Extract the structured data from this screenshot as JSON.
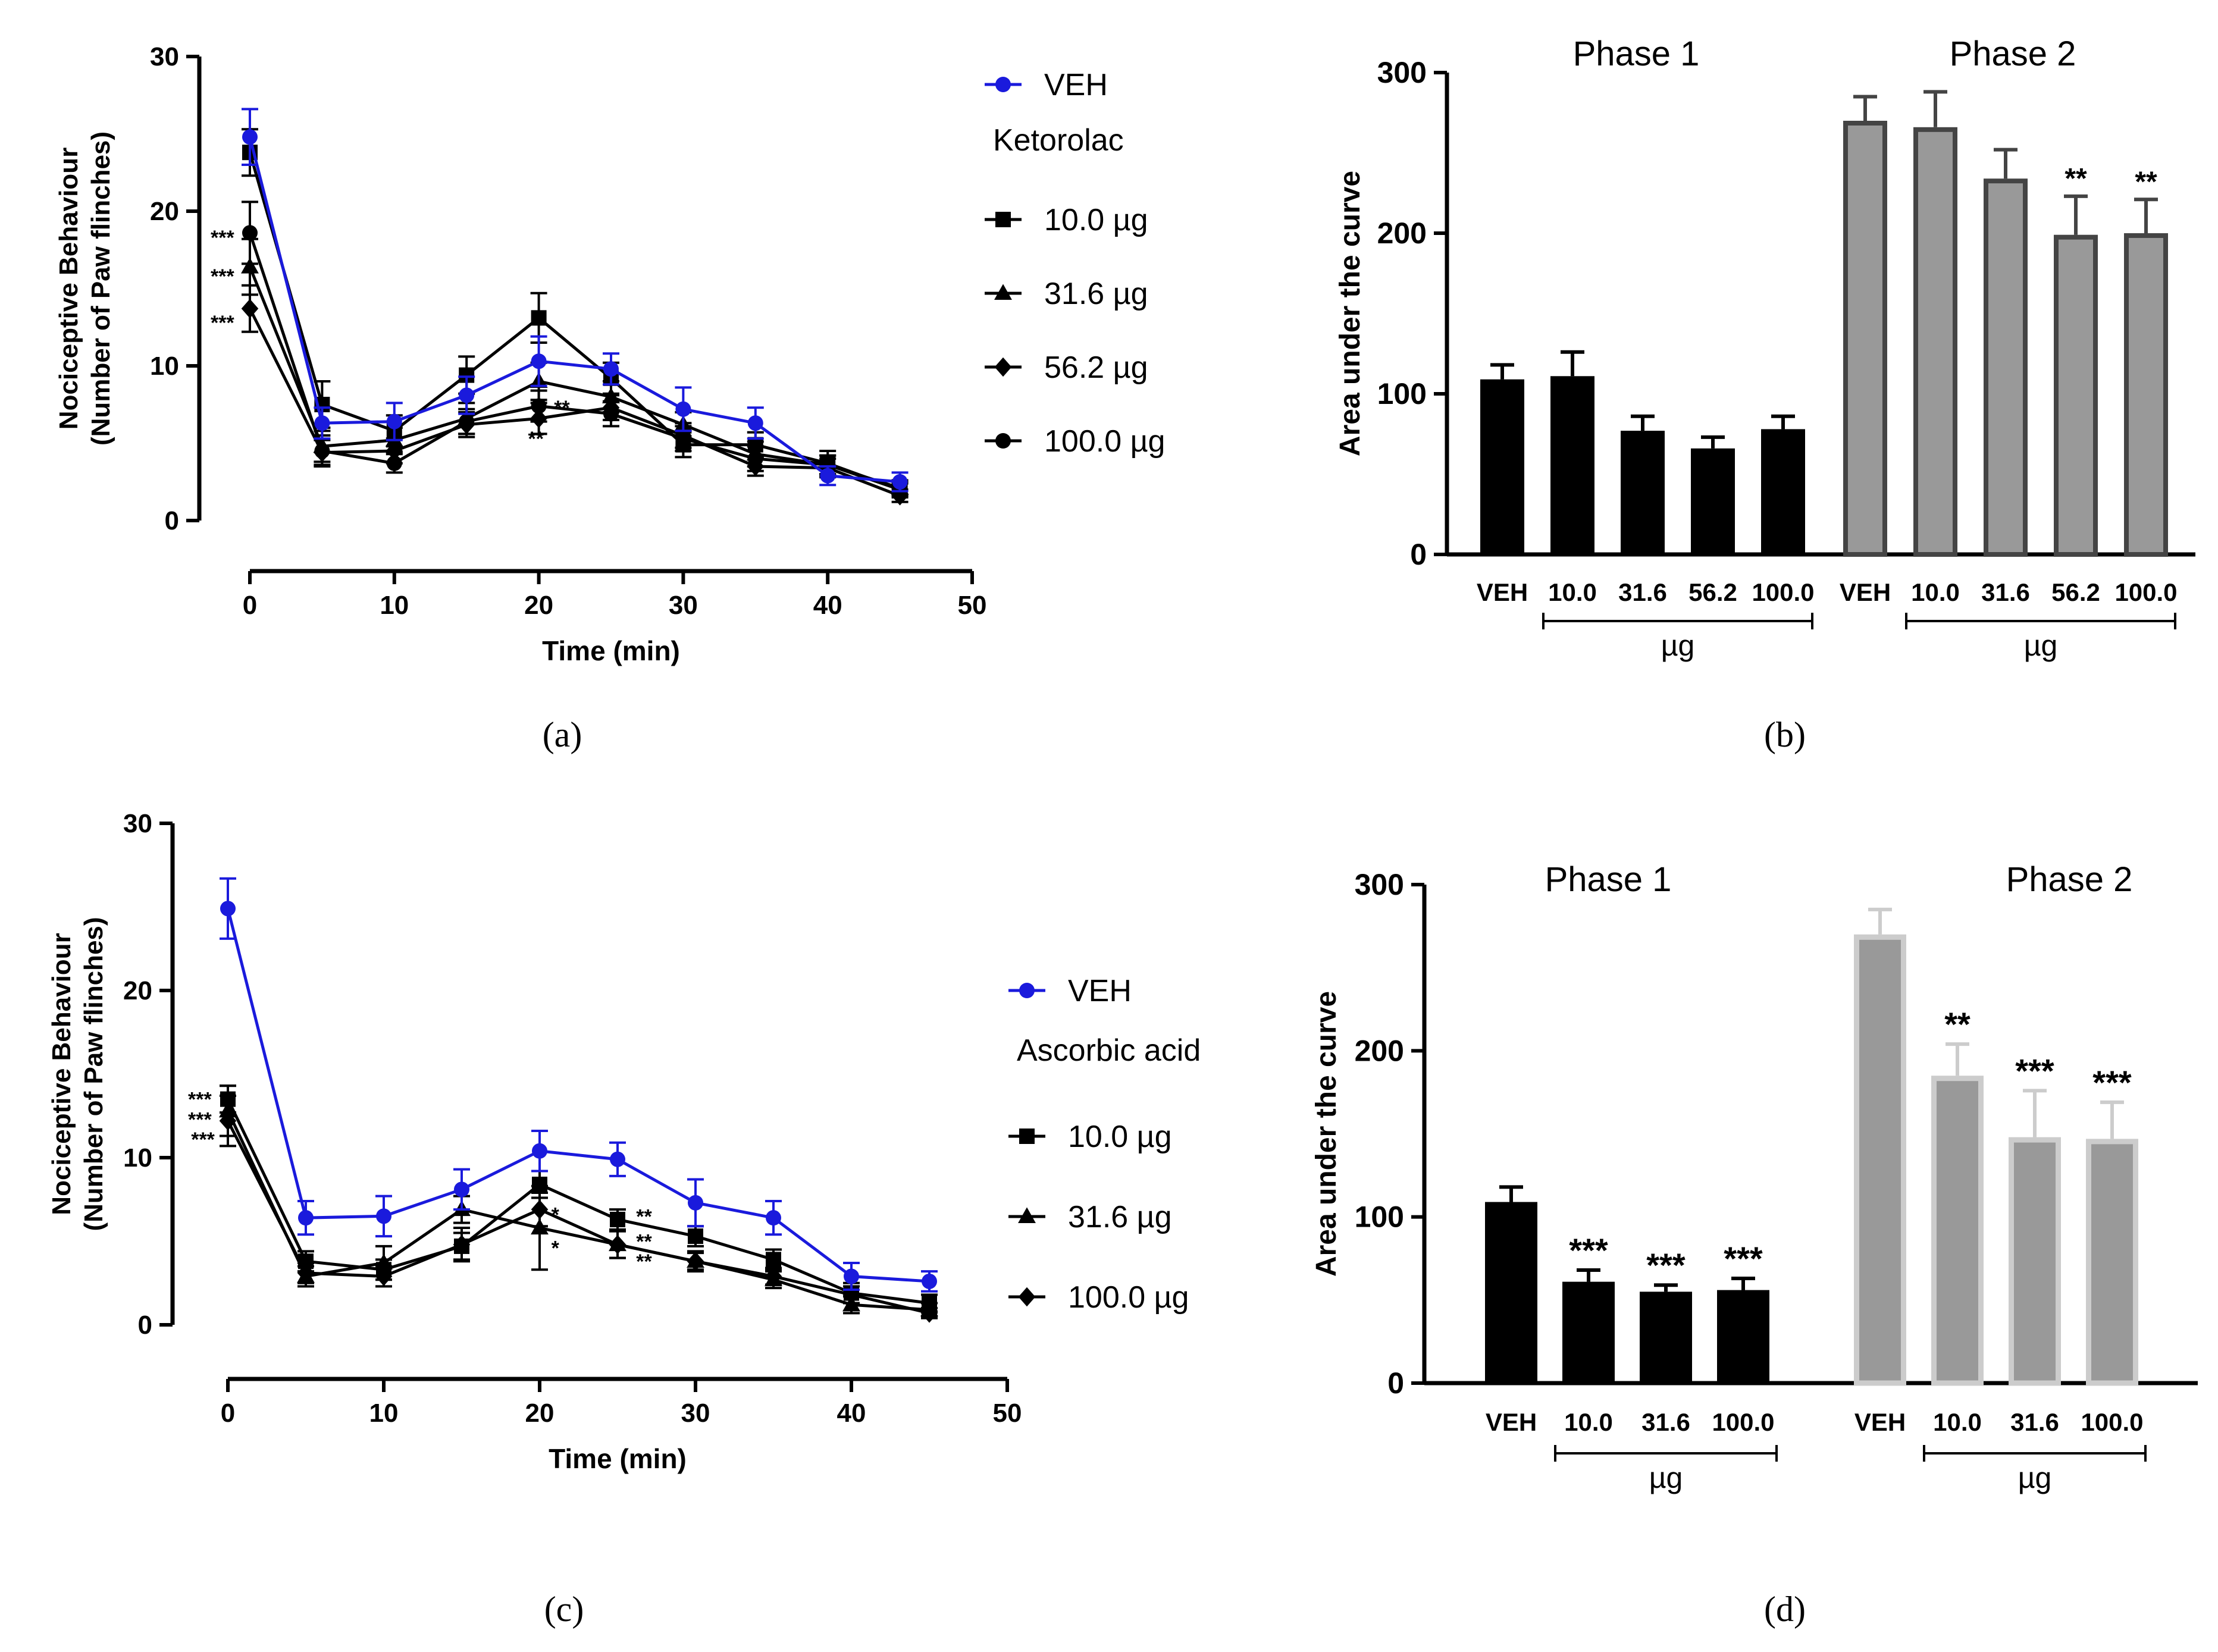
{
  "colors": {
    "veh": "#1a1adc",
    "treat": "#000000",
    "gray": "#999999",
    "grayDark": "#444444",
    "grayLight": "#cccccc"
  },
  "chart_data": [
    {
      "id": "a",
      "type": "line",
      "caption": "(a)",
      "xlabel": "Time (min)",
      "ylabel_line1": "Nociceptive Behaviour",
      "ylabel_line2": "(Number of Paw flinches)",
      "xlim": [
        0,
        50
      ],
      "ylim": [
        0,
        30
      ],
      "xticks": [
        0,
        10,
        20,
        30,
        40,
        50
      ],
      "yticks": [
        0,
        10,
        20,
        30
      ],
      "legend_group_title": "Ketorolac",
      "x": [
        0,
        5,
        10,
        15,
        20,
        25,
        30,
        35,
        40,
        45
      ],
      "series": [
        {
          "name": "VEH",
          "marker": "circle",
          "color": "veh",
          "values": [
            24.8,
            6.3,
            6.4,
            8.1,
            10.3,
            9.8,
            7.2,
            6.3,
            2.9,
            2.5
          ],
          "errors": [
            1.8,
            1.0,
            1.2,
            1.2,
            1.6,
            1.0,
            1.4,
            1.0,
            0.6,
            0.6
          ]
        },
        {
          "name": "10.0 µg",
          "marker": "square",
          "color": "treat",
          "values": [
            23.8,
            7.5,
            5.8,
            9.4,
            13.1,
            9.2,
            4.9,
            4.9,
            3.7,
            2.0
          ],
          "errors": [
            1.5,
            1.5,
            1.0,
            1.2,
            1.6,
            1.0,
            0.8,
            0.8,
            0.8,
            0.5
          ]
        },
        {
          "name": "31.6 µg",
          "marker": "triangle",
          "color": "treat",
          "values": [
            16.4,
            4.8,
            5.2,
            6.6,
            9.0,
            8.0,
            6.2,
            4.3,
            3.6,
            2.1
          ],
          "errors": [
            1.8,
            1.0,
            0.8,
            1.0,
            1.2,
            1.0,
            0.8,
            0.8,
            0.6,
            0.5
          ]
        },
        {
          "name": "56.2 µg",
          "marker": "diamond",
          "color": "treat",
          "values": [
            13.7,
            4.4,
            4.5,
            6.2,
            6.6,
            7.3,
            5.5,
            3.5,
            3.4,
            1.6
          ],
          "errors": [
            1.5,
            0.8,
            0.8,
            0.8,
            1.0,
            0.8,
            0.8,
            0.6,
            0.6,
            0.4
          ]
        },
        {
          "name": "100.0 µg",
          "marker": "circle",
          "color": "treat",
          "values": [
            18.6,
            4.5,
            3.7,
            6.4,
            7.4,
            6.9,
            5.3,
            4.0,
            3.6,
            2.0
          ],
          "errors": [
            2.0,
            1.0,
            0.6,
            0.8,
            1.0,
            0.8,
            0.8,
            0.8,
            0.6,
            0.4
          ]
        }
      ],
      "annotations": [
        {
          "text": "***",
          "x": -1.9,
          "y": 18.3
        },
        {
          "text": "***",
          "x": -1.9,
          "y": 15.8
        },
        {
          "text": "***",
          "x": -1.9,
          "y": 12.8
        },
        {
          "text": "**",
          "x": 21.6,
          "y": 7.3
        },
        {
          "text": "**",
          "x": 19.8,
          "y": 5.3
        }
      ]
    },
    {
      "id": "b",
      "type": "bar",
      "caption": "(b)",
      "ylabel": "Area under the curve",
      "ylim": [
        0,
        300
      ],
      "yticks": [
        0,
        100,
        200,
        300
      ],
      "unit_label": "µg",
      "groups": [
        {
          "title": "Phase 1",
          "style": "black",
          "categories": [
            "VEH",
            "10.0",
            "31.6",
            "56.2",
            "100.0"
          ],
          "values": [
            109,
            111,
            77,
            66,
            78
          ],
          "errors": [
            9,
            15,
            9,
            7,
            8
          ],
          "stars": [
            "",
            "",
            "",
            "",
            ""
          ]
        },
        {
          "title": "Phase 2",
          "style": "gray",
          "categories": [
            "VEH",
            "10.0",
            "31.6",
            "56.2",
            "100.0"
          ],
          "values": [
            270,
            266,
            234,
            199,
            200
          ],
          "errors": [
            15,
            22,
            18,
            24,
            21
          ],
          "stars": [
            "",
            "",
            "",
            "**",
            "**"
          ]
        }
      ]
    },
    {
      "id": "c",
      "type": "line",
      "caption": "(c)",
      "xlabel": "Time (min)",
      "ylabel_line1": "Nociceptive Behaviour",
      "ylabel_line2": "(Number of Paw flinches)",
      "xlim": [
        0,
        50
      ],
      "ylim": [
        0,
        30
      ],
      "xticks": [
        0,
        10,
        20,
        30,
        40,
        50
      ],
      "yticks": [
        0,
        10,
        20,
        30
      ],
      "legend_group_title": "Ascorbic acid",
      "x": [
        0,
        5,
        10,
        15,
        20,
        25,
        30,
        35,
        40,
        45
      ],
      "series": [
        {
          "name": "VEH",
          "marker": "circle",
          "color": "veh",
          "values": [
            24.9,
            6.4,
            6.5,
            8.1,
            10.4,
            9.9,
            7.3,
            6.4,
            2.9,
            2.6
          ],
          "errors": [
            1.8,
            1.0,
            1.2,
            1.2,
            1.2,
            1.0,
            1.4,
            1.0,
            0.8,
            0.6
          ]
        },
        {
          "name": "10.0 µg",
          "marker": "square",
          "color": "treat",
          "values": [
            13.5,
            3.8,
            3.3,
            4.7,
            8.4,
            6.3,
            5.3,
            3.9,
            1.9,
            1.3
          ],
          "errors": [
            0.8,
            0.6,
            0.6,
            0.8,
            0.8,
            0.6,
            0.6,
            0.6,
            0.6,
            0.5
          ]
        },
        {
          "name": "31.6 µg",
          "marker": "triangle",
          "color": "treat",
          "values": [
            12.8,
            2.9,
            3.7,
            6.9,
            5.8,
            4.8,
            3.8,
            2.7,
            1.2,
            0.9
          ],
          "errors": [
            1.5,
            0.6,
            1.0,
            0.8,
            2.5,
            0.8,
            0.6,
            0.5,
            0.5,
            0.4
          ]
        },
        {
          "name": "100.0 µg",
          "marker": "diamond",
          "color": "treat",
          "values": [
            12.2,
            3.1,
            2.9,
            4.8,
            6.9,
            4.8,
            3.8,
            2.9,
            1.8,
            0.7
          ],
          "errors": [
            1.5,
            0.6,
            0.6,
            1.0,
            1.0,
            0.8,
            0.5,
            0.5,
            0.5,
            0.3
          ]
        }
      ],
      "annotations": [
        {
          "text": "***",
          "x": -1.8,
          "y": 13.5
        },
        {
          "text": "***",
          "x": -1.8,
          "y": 12.3
        },
        {
          "text": "***",
          "x": -1.6,
          "y": 11.1
        },
        {
          "text": "**",
          "x": 26.7,
          "y": 6.5
        },
        {
          "text": "**",
          "x": 26.7,
          "y": 5.0
        },
        {
          "text": "**",
          "x": 26.7,
          "y": 3.8
        },
        {
          "text": "*",
          "x": 21.0,
          "y": 6.6
        },
        {
          "text": "*",
          "x": 21.0,
          "y": 4.6
        }
      ]
    },
    {
      "id": "d",
      "type": "bar",
      "caption": "(d)",
      "ylabel": "Area under the curve",
      "ylim": [
        0,
        300
      ],
      "yticks": [
        0,
        100,
        200,
        300
      ],
      "unit_label": "µg",
      "groups": [
        {
          "title": "Phase 1",
          "style": "black",
          "categories": [
            "VEH",
            "10.0",
            "31.6",
            "100.0"
          ],
          "values": [
            109,
            61,
            55,
            56
          ],
          "errors": [
            9,
            7,
            4,
            7
          ],
          "stars": [
            "",
            "***",
            "***",
            "***"
          ]
        },
        {
          "title": "Phase 2",
          "style": "lightgray",
          "categories": [
            "VEH",
            "10.0",
            "31.6",
            "100.0"
          ],
          "values": [
            270,
            185,
            148,
            147
          ],
          "errors": [
            15,
            19,
            28,
            22
          ],
          "stars": [
            "",
            "**",
            "***",
            "***"
          ]
        }
      ]
    }
  ]
}
